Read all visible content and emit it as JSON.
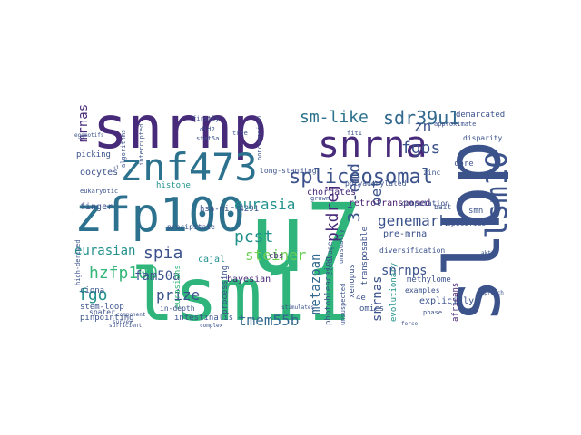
{
  "words": [
    {
      "text": "snrnp",
      "color": "#472a7a"
    },
    {
      "text": "lsm11",
      "color": "#2fb47c"
    },
    {
      "text": "u7",
      "color": "#2fb47c"
    },
    {
      "text": "zfp100",
      "color": "#2c728e"
    },
    {
      "text": "snrna",
      "color": "#472a7a"
    },
    {
      "text": "znf473",
      "color": "#2c728e"
    },
    {
      "text": "slbp",
      "color": "#3b528b"
    },
    {
      "text": "lsm10",
      "color": "#3b528b"
    },
    {
      "text": "sdr39u1",
      "color": "#31688e"
    },
    {
      "text": "spliceosomal",
      "color": "#3b528b"
    },
    {
      "text": "sm-like",
      "color": "#2c728e"
    },
    {
      "text": "fgos",
      "color": "#3b528b"
    },
    {
      "text": "zn",
      "color": "#3b528b"
    },
    {
      "text": "eurasia",
      "color": "#21918c"
    },
    {
      "text": "pcst",
      "color": "#21918c"
    },
    {
      "text": "hzfp100",
      "color": "#35b779"
    },
    {
      "text": "genemark",
      "color": "#3b528b"
    },
    {
      "text": "3'-end",
      "color": "#3b528b"
    },
    {
      "text": "pkdrej",
      "color": "#472a7a"
    },
    {
      "text": "oet",
      "color": "#3b528b"
    },
    {
      "text": "steiner",
      "color": "#6ece58"
    },
    {
      "text": "spia",
      "color": "#3b528b"
    },
    {
      "text": "prize",
      "color": "#3b528b"
    },
    {
      "text": "fam50a",
      "color": "#3b528b"
    },
    {
      "text": "tmem55b",
      "color": "#31688e"
    },
    {
      "text": "fgo",
      "color": "#21918c"
    },
    {
      "text": "metazoan",
      "color": "#31688e"
    },
    {
      "text": "eurasian",
      "color": "#21918c"
    },
    {
      "text": "snrnps",
      "color": "#3b528b"
    },
    {
      "text": "snrnas",
      "color": "#3b528b"
    },
    {
      "text": "mrnas",
      "color": "#472a7a"
    },
    {
      "text": "hsa-mir-4291",
      "color": "#3b528b"
    },
    {
      "text": "pre-mrna",
      "color": "#3b528b"
    },
    {
      "text": "demarcated",
      "color": "#3b528b"
    },
    {
      "text": "retrotransposed",
      "color": "#482071"
    },
    {
      "text": "chordates",
      "color": "#472a7a"
    },
    {
      "text": "oocytes",
      "color": "#3b528b"
    },
    {
      "text": "finger",
      "color": "#3b528b"
    },
    {
      "text": "cajal",
      "color": "#21918c"
    },
    {
      "text": "processing",
      "color": "#3b528b"
    },
    {
      "text": "bayesian",
      "color": "#472a7a"
    },
    {
      "text": "cbs",
      "color": "#472a7a"
    },
    {
      "text": "photobleaching",
      "color": "#3b528b"
    },
    {
      "text": "transposable",
      "color": "#3b528b"
    },
    {
      "text": "xenopus",
      "color": "#3b528b"
    },
    {
      "text": "methylome",
      "color": "#3b528b"
    },
    {
      "text": "evolutionary",
      "color": "#21918c"
    },
    {
      "text": "explicitly",
      "color": "#3b528b"
    },
    {
      "text": "omics",
      "color": "#3b528b"
    },
    {
      "text": "ciona",
      "color": "#3b528b"
    },
    {
      "text": "stem-loop",
      "color": "#3b528b"
    },
    {
      "text": "pinpointing",
      "color": "#3b528b"
    },
    {
      "text": "intestinalis",
      "color": "#3b528b"
    },
    {
      "text": "replication-dependent",
      "color": "#b5de2b"
    },
    {
      "text": "africans",
      "color": "#482071"
    },
    {
      "text": "core",
      "color": "#3b528b"
    },
    {
      "text": "smn",
      "color": "#3b528b"
    },
    {
      "text": "picking",
      "color": "#3b528b"
    },
    {
      "text": "histone",
      "color": "#21918c"
    },
    {
      "text": "eurasians",
      "color": "#35b779"
    },
    {
      "text": "high-derived",
      "color": "#3b528b"
    },
    {
      "text": "spater",
      "color": "#3b528b"
    },
    {
      "text": "in-depth",
      "color": "#3b528b"
    },
    {
      "text": "4e",
      "color": "#3b528b"
    },
    {
      "text": "long-standing",
      "color": "#3b528b"
    },
    {
      "text": "grown",
      "color": "#3b528b"
    },
    {
      "text": "polyadenylated",
      "color": "#3b528b"
    },
    {
      "text": "computation",
      "color": "#3b528b"
    },
    {
      "text": "diversification",
      "color": "#3b528b"
    },
    {
      "text": "cleavage",
      "color": "#3b528b"
    },
    {
      "text": "fulfills",
      "color": "#3b528b"
    },
    {
      "text": "specifies",
      "color": "#3b528b"
    },
    {
      "text": "zinc",
      "color": "#3b528b"
    },
    {
      "text": "bait",
      "color": "#3b528b"
    },
    {
      "text": "disparity",
      "color": "#3b528b"
    },
    {
      "text": "precipitate",
      "color": "#3b528b"
    },
    {
      "text": "unusually",
      "color": "#3b528b"
    },
    {
      "text": "unsuspected",
      "color": "#3b528b"
    },
    {
      "text": "examples",
      "color": "#3b528b"
    },
    {
      "text": "phase",
      "color": "#3b528b"
    },
    {
      "text": "tree",
      "color": "#3b528b"
    },
    {
      "text": "firstly",
      "color": "#3b528b"
    },
    {
      "text": "interrupted",
      "color": "#3b528b"
    },
    {
      "text": "algorithms",
      "color": "#3b528b"
    },
    {
      "text": "approximate",
      "color": "#3b528b"
    },
    {
      "text": "noncanonical",
      "color": "#3b528b"
    },
    {
      "text": "stat5a",
      "color": "#3b528b"
    },
    {
      "text": "dld2",
      "color": "#3b528b"
    },
    {
      "text": "fit1",
      "color": "#3b528b"
    },
    {
      "text": "eggmotifs",
      "color": "#3b528b"
    },
    {
      "text": "akt1",
      "color": "#3b528b"
    },
    {
      "text": "survey",
      "color": "#3b528b"
    },
    {
      "text": "component",
      "color": "#3b528b"
    },
    {
      "text": "stimulates",
      "color": "#3b528b"
    },
    {
      "text": "u1",
      "color": "#3b528b"
    },
    {
      "text": "eukaryotic",
      "color": "#3b528b"
    },
    {
      "text": "sufficient",
      "color": "#3b528b"
    },
    {
      "text": "complex",
      "color": "#3b528b"
    },
    {
      "text": "force",
      "color": "#3b528b"
    },
    {
      "text": "approach",
      "color": "#3b528b"
    }
  ]
}
